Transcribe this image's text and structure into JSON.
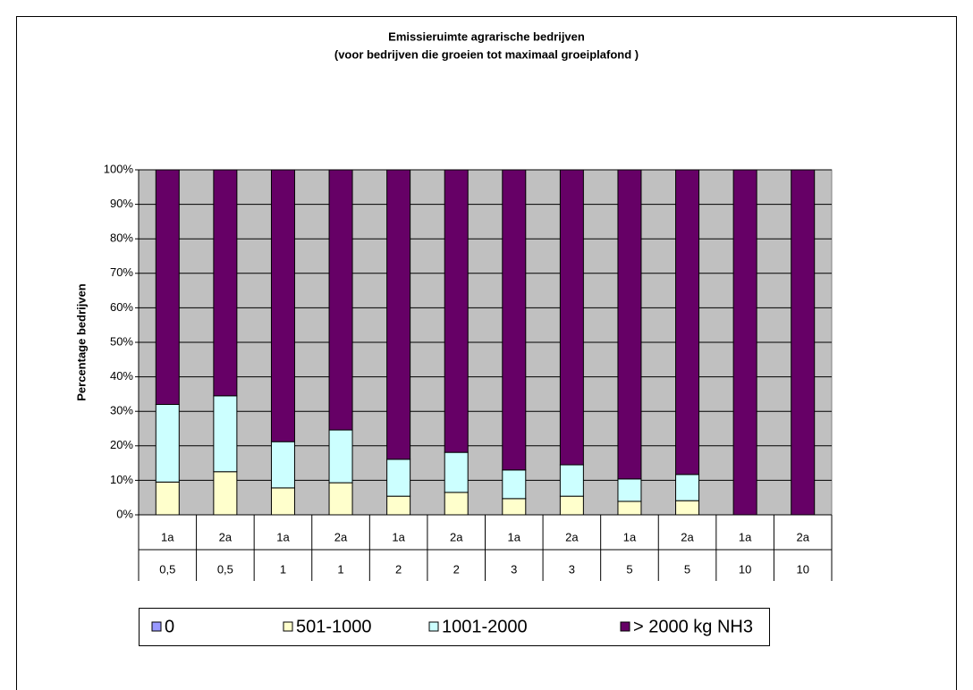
{
  "chart_data": {
    "type": "stacked_bar_100",
    "title": "Emissieruimte agrarische bedrijven",
    "subtitle": "(voor bedrijven die groeien tot maximaal groeiplafond )",
    "y_label": "Percentage bedrijven",
    "categories": [
      "1a",
      "2a",
      "1a",
      "2a",
      "1a",
      "2a",
      "1a",
      "2a",
      "1a",
      "2a",
      "1a",
      "2a"
    ],
    "subcategories": [
      "0,5",
      "0,5",
      "1",
      "1",
      "2",
      "2",
      "3",
      "3",
      "5",
      "5",
      "10",
      "10"
    ],
    "series": [
      {
        "name": "0",
        "color": "#9999ff",
        "values": [
          0,
          0,
          0,
          0,
          0,
          0,
          0,
          0,
          0,
          0,
          0,
          0
        ]
      },
      {
        "name": "501-1000",
        "color": "#ffffcc",
        "values": [
          9.5,
          12.5,
          7.8,
          9.3,
          5.4,
          6.5,
          4.7,
          5.4,
          3.9,
          4.1,
          0,
          0
        ]
      },
      {
        "name": "1001-2000",
        "color": "#ccffff",
        "values": [
          22.5,
          22,
          13.4,
          15.3,
          10.7,
          11.6,
          8.3,
          9.1,
          6.5,
          7.6,
          0,
          0
        ]
      },
      {
        "name": "> 2000 kg NH3",
        "color": "#660066",
        "values": [
          68,
          65.5,
          78.8,
          75.4,
          83.9,
          81.9,
          87,
          85.5,
          89.6,
          88.3,
          100,
          100
        ]
      }
    ],
    "ylim": [
      0,
      100
    ],
    "yticks": [
      {
        "value": 0,
        "label": "0%"
      },
      {
        "value": 10,
        "label": "10%"
      },
      {
        "value": 20,
        "label": "20%"
      },
      {
        "value": 30,
        "label": "30%"
      },
      {
        "value": 40,
        "label": "40%"
      },
      {
        "value": 50,
        "label": "50%"
      },
      {
        "value": 60,
        "label": "60%"
      },
      {
        "value": 70,
        "label": "70%"
      },
      {
        "value": 80,
        "label": "80%"
      },
      {
        "value": 90,
        "label": "90%"
      },
      {
        "value": 100,
        "label": "100%"
      }
    ],
    "grid": true,
    "legend": "bottom"
  }
}
